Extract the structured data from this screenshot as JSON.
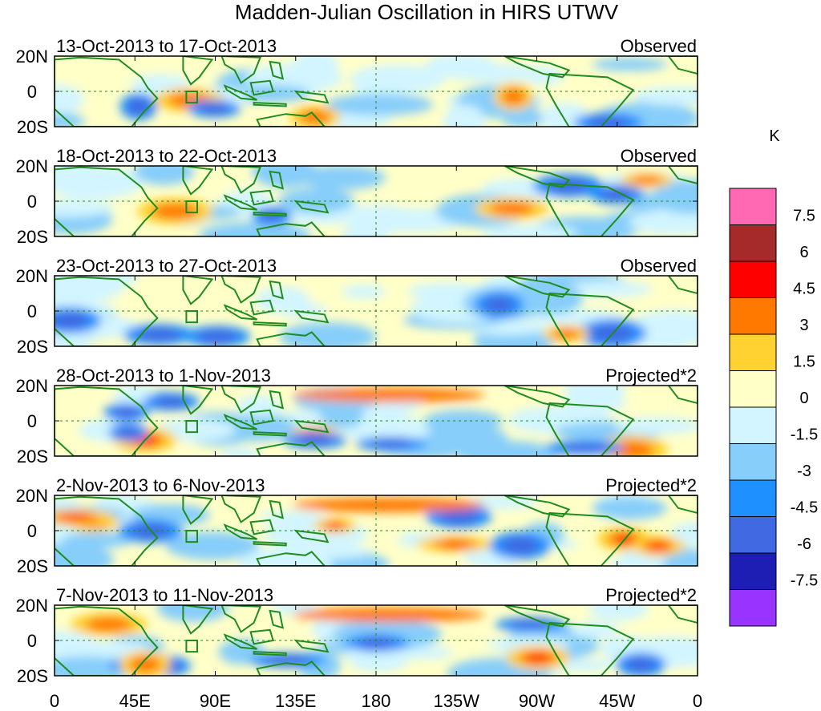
{
  "title": "Madden-Julian Oscillation in HIRS UTWV",
  "colorbar": {
    "unit": "K",
    "colors": [
      "#9933ff",
      "#1e1eb4",
      "#4169e1",
      "#1e90ff",
      "#87cefa",
      "#d2f5ff",
      "#ffffc8",
      "#ffd232",
      "#ff7800",
      "#ff0000",
      "#a52a2a",
      "#ff69b4"
    ],
    "labels": [
      "-7.5",
      "-6",
      "-4.5",
      "-3",
      "-1.5",
      "0",
      "1.5",
      "3",
      "4.5",
      "6",
      "7.5"
    ]
  },
  "x_ticks": [
    "0",
    "45E",
    "90E",
    "135E",
    "180",
    "135W",
    "90W",
    "45W",
    "0"
  ],
  "y_ticks": [
    "20N",
    "0",
    "20S"
  ],
  "panels": [
    {
      "date_range": "13-Oct-2013 to 17-Oct-2013",
      "type": "Observed"
    },
    {
      "date_range": "18-Oct-2013 to 22-Oct-2013",
      "type": "Observed"
    },
    {
      "date_range": "23-Oct-2013 to 27-Oct-2013",
      "type": "Observed"
    },
    {
      "date_range": "28-Oct-2013 to 1-Nov-2013",
      "type": "Projected*2"
    },
    {
      "date_range": "2-Nov-2013 to 6-Nov-2013",
      "type": "Projected*2"
    },
    {
      "date_range": "7-Nov-2013 to 11-Nov-2013",
      "type": "Projected*2"
    }
  ],
  "colors": {
    "coastline": "#1e8c1e",
    "reference_line": "#1e8c1e"
  }
}
